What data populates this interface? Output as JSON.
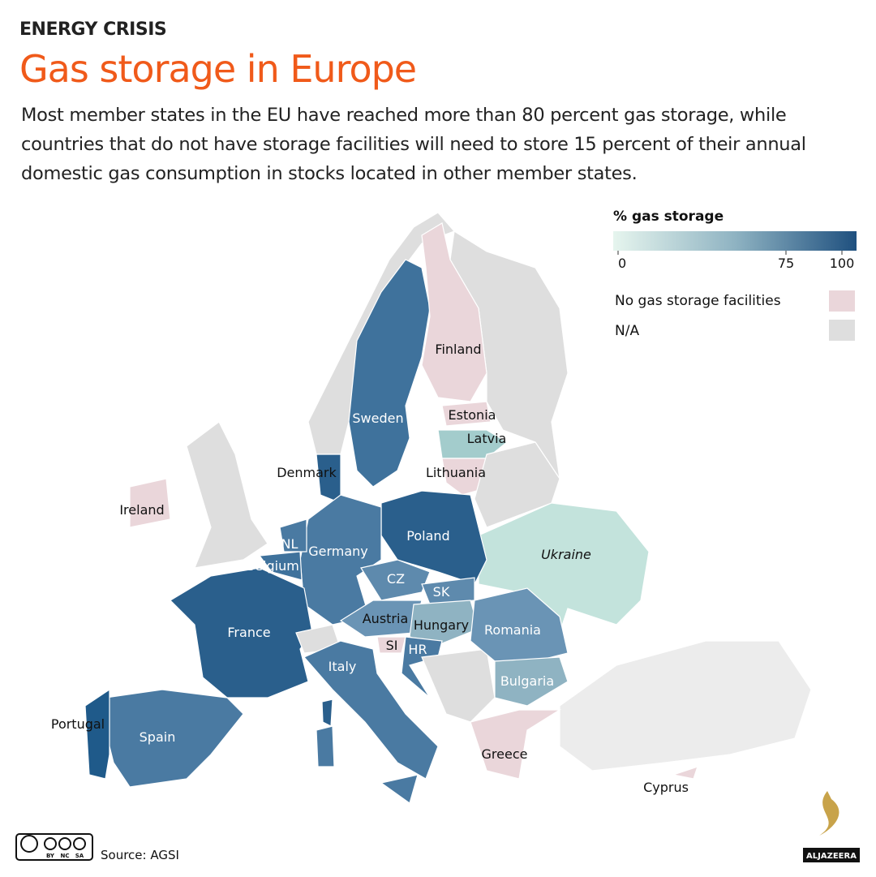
{
  "header": {
    "kicker": "ENERGY CRISIS",
    "title": "Gas storage in Europe",
    "subtitle": "Most member states in the EU have reached more than 80 percent gas storage, while countries that do not have storage facilities will need to store 15 percent of their annual domestic gas consumption in stocks located in other member states."
  },
  "legend": {
    "title": "% gas storage",
    "ticks": [
      0,
      75,
      100
    ],
    "items": [
      "No gas storage facilities",
      "N/A"
    ]
  },
  "map": {
    "labels": [
      "Finland",
      "Sweden",
      "Estonia",
      "Latvia",
      "Denmark",
      "Lithuania",
      "Ireland",
      "Poland",
      "NL",
      "Germany",
      "Ukraine",
      "Belgium",
      "CZ",
      "SK",
      "France",
      "Austria",
      "Hungary",
      "Romania",
      "SI",
      "HR",
      "Italy",
      "Bulgaria",
      "Portugal",
      "Spain",
      "Greece",
      "Cyprus"
    ]
  },
  "footer": {
    "source": "Source: AGSI",
    "logo": "ALJAZEERA",
    "license": [
      "BY",
      "NC",
      "SA"
    ]
  }
}
